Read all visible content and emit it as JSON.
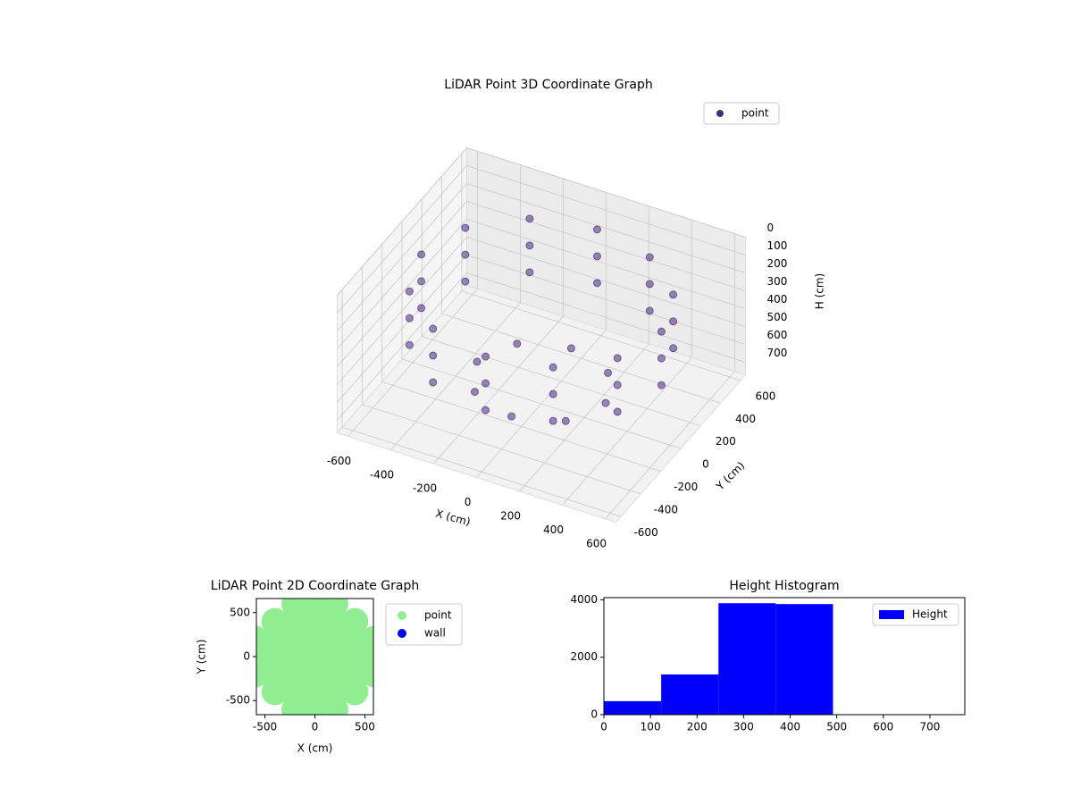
{
  "chart_data": [
    {
      "type": "scatter3d",
      "title": "LiDAR Point 3D Coordinate Graph",
      "xlabel": "X (cm)",
      "ylabel": "Y (cm)",
      "zlabel": "H (cm)",
      "xlim": [
        -650,
        650
      ],
      "ylim": [
        -650,
        650
      ],
      "zlim": [
        0,
        770
      ],
      "zinverted": true,
      "xticks": [
        -600,
        -400,
        -200,
        0,
        200,
        400,
        600
      ],
      "yticks": [
        -600,
        -400,
        -200,
        0,
        200,
        400,
        600
      ],
      "zticks": [
        0,
        100,
        200,
        300,
        400,
        500,
        600,
        700
      ],
      "legend": "upper right",
      "grid": true,
      "series": [
        {
          "name": "point",
          "color": "#472c7a",
          "x": [
            560,
            485,
            280,
            0,
            -280,
            -485,
            -560,
            -485,
            -280,
            0,
            280,
            485,
            560,
            485,
            280,
            0,
            -280,
            -485,
            -560,
            -485,
            -280,
            0,
            280,
            485,
            560,
            485,
            280,
            0,
            -280,
            -485,
            -560,
            -485,
            -280,
            0,
            280,
            485,
            300,
            212,
            0,
            -212,
            -300,
            -212,
            0,
            212
          ],
          "y": [
            0,
            280,
            485,
            560,
            485,
            280,
            0,
            -280,
            -485,
            -560,
            -485,
            -280,
            0,
            280,
            485,
            560,
            485,
            280,
            0,
            -280,
            -485,
            -560,
            -485,
            -280,
            0,
            280,
            485,
            560,
            485,
            280,
            0,
            -280,
            -485,
            -560,
            -485,
            -280,
            0,
            212,
            300,
            212,
            0,
            -212,
            -300,
            -212
          ],
          "z": [
            150,
            150,
            150,
            150,
            150,
            150,
            150,
            150,
            150,
            150,
            150,
            150,
            300,
            300,
            300,
            300,
            300,
            300,
            300,
            300,
            300,
            300,
            300,
            300,
            450,
            450,
            450,
            450,
            450,
            450,
            450,
            450,
            450,
            450,
            450,
            450,
            650,
            650,
            650,
            650,
            650,
            650,
            650,
            650
          ]
        }
      ]
    },
    {
      "type": "scatter",
      "title": "LiDAR Point 2D Coordinate Graph",
      "xlabel": "X (cm)",
      "ylabel": "Y (cm)",
      "xlim": [
        -585,
        585
      ],
      "ylim": [
        -660,
        660
      ],
      "xticks": [
        -500,
        0,
        500
      ],
      "yticks": [
        -500,
        0,
        500
      ],
      "legend": "outside right",
      "series": [
        {
          "name": "point",
          "color": "#90ee90",
          "x": [
            -600,
            -600,
            -600,
            -400,
            -400,
            -400,
            -400,
            -400,
            -200,
            -200,
            -200,
            -200,
            -200,
            -200,
            -200,
            0,
            0,
            0,
            0,
            0,
            0,
            0,
            200,
            200,
            200,
            200,
            200,
            200,
            200,
            400,
            400,
            400,
            400,
            400,
            600,
            600,
            600
          ],
          "y": [
            -200,
            0,
            200,
            -400,
            -200,
            0,
            200,
            400,
            -600,
            -400,
            -200,
            0,
            200,
            400,
            600,
            -600,
            -400,
            -200,
            0,
            200,
            400,
            600,
            -600,
            -400,
            -200,
            0,
            200,
            400,
            600,
            -400,
            -200,
            0,
            200,
            400,
            -200,
            0,
            200
          ]
        },
        {
          "name": "wall",
          "color": "#0000ff",
          "x": [],
          "y": []
        }
      ]
    },
    {
      "type": "histogram",
      "title": "Height Histogram",
      "name": "Height",
      "color": "#0000ff",
      "bins": [
        0,
        123,
        246,
        369,
        492,
        615,
        738
      ],
      "values": [
        470,
        1400,
        3880,
        3850,
        0,
        0
      ],
      "xlim": [
        0,
        775
      ],
      "ylim": [
        0,
        4074
      ],
      "xticks": [
        0,
        100,
        200,
        300,
        400,
        500,
        600,
        700
      ],
      "yticks": [
        0,
        2000,
        4000
      ],
      "legend": "upper right"
    }
  ]
}
